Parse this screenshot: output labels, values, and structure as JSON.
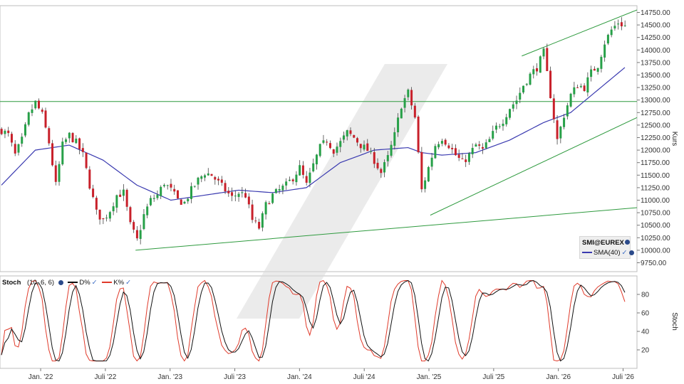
{
  "chart_data": [
    {
      "type": "candlestick",
      "instrument": "SMI@EUREX",
      "ylabel": "Kurs",
      "ylim": [
        9750,
        14750
      ],
      "yticks": [
        9750,
        10000,
        10250,
        10500,
        10750,
        11000,
        11250,
        11500,
        11750,
        12000,
        12250,
        12500,
        12750,
        13000,
        13250,
        13500,
        13750,
        14000,
        14250,
        14500,
        14750
      ],
      "ytick_labels": [
        "9750.00",
        "10000.00",
        "10250.00",
        "10500.00",
        "10750.00",
        "11000.00",
        "11250.00",
        "11500.00",
        "11750.00",
        "12000.00",
        "12250.00",
        "12500.00",
        "12750.00",
        "13000.00",
        "13250.00",
        "13500.00",
        "13750.00",
        "14000.00",
        "14250.00",
        "14500.00",
        "14750.00"
      ],
      "x_tick_labels": [
        "Jan. '22",
        "Juli '22",
        "Jan. '23",
        "Juli '23",
        "Jan. '24",
        "Juli '24",
        "Jan. '25",
        "Juli '25",
        "Jan. '26",
        "Juli '26"
      ],
      "price_path": [
        [
          0,
          12400
        ],
        [
          2,
          12300
        ],
        [
          4,
          11900
        ],
        [
          6,
          12200
        ],
        [
          8,
          12700
        ],
        [
          10,
          12950
        ],
        [
          12,
          12700
        ],
        [
          14,
          12150
        ],
        [
          16,
          11300
        ],
        [
          18,
          12100
        ],
        [
          20,
          12300
        ],
        [
          22,
          12150
        ],
        [
          24,
          11900
        ],
        [
          26,
          11300
        ],
        [
          28,
          10750
        ],
        [
          30,
          10600
        ],
        [
          32,
          10800
        ],
        [
          34,
          11100
        ],
        [
          36,
          11150
        ],
        [
          38,
          10500
        ],
        [
          40,
          10200
        ],
        [
          42,
          10700
        ],
        [
          44,
          11000
        ],
        [
          46,
          11100
        ],
        [
          48,
          11350
        ],
        [
          50,
          11200
        ],
        [
          52,
          11000
        ],
        [
          54,
          10950
        ],
        [
          56,
          11200
        ],
        [
          58,
          11400
        ],
        [
          60,
          11550
        ],
        [
          62,
          11500
        ],
        [
          64,
          11350
        ],
        [
          66,
          11200
        ],
        [
          68,
          11050
        ],
        [
          70,
          11150
        ],
        [
          72,
          11100
        ],
        [
          74,
          10600
        ],
        [
          76,
          10450
        ],
        [
          78,
          10900
        ],
        [
          80,
          11100
        ],
        [
          82,
          11200
        ],
        [
          84,
          11300
        ],
        [
          86,
          11450
        ],
        [
          88,
          11650
        ],
        [
          90,
          11300
        ],
        [
          92,
          11700
        ],
        [
          94,
          12050
        ],
        [
          96,
          12200
        ],
        [
          98,
          12000
        ],
        [
          100,
          12150
        ],
        [
          102,
          12350
        ],
        [
          104,
          12250
        ],
        [
          106,
          12100
        ],
        [
          108,
          12000
        ],
        [
          110,
          11800
        ],
        [
          112,
          11550
        ],
        [
          114,
          11850
        ],
        [
          116,
          12300
        ],
        [
          118,
          12900
        ],
        [
          120,
          13150
        ],
        [
          122,
          12650
        ],
        [
          124,
          11200
        ],
        [
          126,
          11650
        ],
        [
          128,
          12100
        ],
        [
          130,
          12250
        ],
        [
          132,
          12100
        ],
        [
          134,
          11900
        ],
        [
          136,
          11750
        ],
        [
          138,
          11900
        ],
        [
          140,
          12100
        ],
        [
          142,
          12000
        ],
        [
          144,
          12200
        ],
        [
          146,
          12450
        ],
        [
          148,
          12600
        ],
        [
          150,
          12850
        ],
        [
          152,
          13000
        ],
        [
          154,
          13300
        ],
        [
          156,
          13500
        ],
        [
          158,
          13650
        ],
        [
          160,
          13950
        ],
        [
          162,
          13100
        ],
        [
          164,
          12200
        ],
        [
          166,
          12700
        ],
        [
          168,
          13100
        ],
        [
          170,
          13300
        ],
        [
          172,
          13250
        ],
        [
          174,
          13550
        ],
        [
          176,
          13700
        ],
        [
          178,
          14150
        ],
        [
          180,
          14400
        ],
        [
          182,
          14550
        ],
        [
          184,
          14480
        ]
      ],
      "series": [
        {
          "name": "SMA(40)",
          "color": "#3a3ab0",
          "values": [
            [
              0,
              11300
            ],
            [
              10,
              12000
            ],
            [
              20,
              12100
            ],
            [
              30,
              11800
            ],
            [
              40,
              11300
            ],
            [
              50,
              11000
            ],
            [
              60,
              11100
            ],
            [
              70,
              11200
            ],
            [
              80,
              11150
            ],
            [
              90,
              11250
            ],
            [
              100,
              11750
            ],
            [
              110,
              12000
            ],
            [
              120,
              12050
            ],
            [
              124,
              11950
            ],
            [
              130,
              11900
            ],
            [
              140,
              11950
            ],
            [
              150,
              12200
            ],
            [
              160,
              12550
            ],
            [
              168,
              12750
            ],
            [
              176,
              13200
            ],
            [
              184,
              13650
            ]
          ]
        }
      ],
      "reference_lines": {
        "horizontal": 12970,
        "channel": [
          [
            [
              154,
              13880
            ],
            [
              188,
              14800
            ]
          ],
          [
            [
              127,
              10700
            ],
            [
              188,
              12650
            ]
          ]
        ],
        "support": [
          [
            [
              40,
              10000
            ],
            [
              188,
              10850
            ]
          ]
        ]
      },
      "legend": {
        "title": "SMI@EUREX",
        "entries": [
          "SMA(40)"
        ],
        "position": "bottom-right"
      }
    },
    {
      "type": "line",
      "title": "Stoch",
      "params": "(10, 6, 6)",
      "ylabel": "Stoch",
      "ylim": [
        0,
        100
      ],
      "yticks": [
        20,
        40,
        60,
        80
      ],
      "series": [
        {
          "name": "D%",
          "color": "#111111"
        },
        {
          "name": "K%",
          "color": "#e03a2a"
        }
      ],
      "legend_position": "top-left"
    }
  ]
}
